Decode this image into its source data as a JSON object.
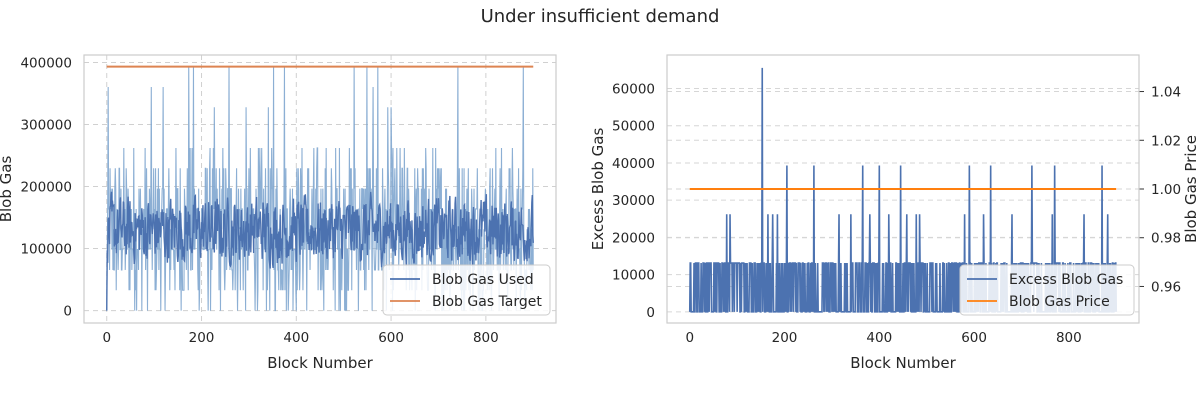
{
  "figure": {
    "title": "Under insufficient demand"
  },
  "chart_data": [
    {
      "type": "line",
      "title": "",
      "xlabel": "Block Number",
      "ylabel": "Blob Gas",
      "xlim": [
        -48,
        948
      ],
      "ylim": [
        -20000,
        412000
      ],
      "xticks": [
        0,
        200,
        400,
        600,
        800
      ],
      "yticks": [
        0,
        100000,
        200000,
        300000,
        400000
      ],
      "grid": true,
      "legend_position": "bottom-right",
      "legend": [
        "Blob Gas Used",
        "Blob Gas Target"
      ],
      "series": [
        {
          "name": "Blob Gas Used",
          "color": "#4c72b0",
          "description_levels": [
            0,
            32768,
            65536,
            98304,
            131072,
            163840,
            196608,
            229376,
            262144,
            327680,
            360448,
            393216
          ],
          "x_range": [
            0,
            900
          ],
          "typical_range": [
            0,
            262144
          ],
          "peak_blocks": [
            173,
            183,
            258,
            352,
            375,
            522,
            549,
            572,
            741,
            879
          ],
          "peak_value": 393216
        },
        {
          "name": "Blob Gas Target",
          "color": "#dd8452",
          "x": [
            0,
            900
          ],
          "values": [
            393216,
            393216
          ]
        }
      ]
    },
    {
      "type": "line",
      "title": "",
      "xlabel": "Block Number",
      "ylabel": "Excess Blob Gas",
      "ylabel_right": "Blob Gas Price",
      "xlim": [
        -48,
        948
      ],
      "ylim": [
        -3000,
        69000
      ],
      "ylim_right": [
        0.945,
        1.055
      ],
      "xticks": [
        0,
        200,
        400,
        600,
        800
      ],
      "yticks": [
        0,
        10000,
        20000,
        30000,
        40000,
        50000,
        60000
      ],
      "yticks_right": [
        0.96,
        0.98,
        1.0,
        1.02,
        1.04
      ],
      "yticks_right_labels": [
        "0.96",
        "0.98",
        "1.00",
        "1.02",
        "1.04"
      ],
      "grid": true,
      "legend_position": "bottom-right",
      "legend": [
        "Excess Blob Gas",
        "Blob Gas Price"
      ],
      "series": [
        {
          "name": "Excess Blob Gas",
          "color": "#4c72b0",
          "axis": "left",
          "spikes": [
            {
              "x": 153,
              "value": 65536
            },
            {
              "x": 205,
              "value": 39321
            },
            {
              "x": 262,
              "value": 39321
            },
            {
              "x": 365,
              "value": 39321
            },
            {
              "x": 400,
              "value": 39321
            },
            {
              "x": 445,
              "value": 39321
            },
            {
              "x": 590,
              "value": 39321
            },
            {
              "x": 635,
              "value": 39321
            },
            {
              "x": 722,
              "value": 39321
            },
            {
              "x": 770,
              "value": 39321
            },
            {
              "x": 870,
              "value": 39321
            },
            {
              "x": 78,
              "value": 26214
            },
            {
              "x": 85,
              "value": 26214
            },
            {
              "x": 165,
              "value": 26214
            },
            {
              "x": 175,
              "value": 26214
            },
            {
              "x": 185,
              "value": 26214
            },
            {
              "x": 315,
              "value": 26214
            },
            {
              "x": 340,
              "value": 26214
            },
            {
              "x": 380,
              "value": 26214
            },
            {
              "x": 420,
              "value": 26214
            },
            {
              "x": 458,
              "value": 26214
            },
            {
              "x": 478,
              "value": 26214
            },
            {
              "x": 485,
              "value": 26214
            },
            {
              "x": 580,
              "value": 26214
            },
            {
              "x": 620,
              "value": 26214
            },
            {
              "x": 680,
              "value": 26214
            },
            {
              "x": 765,
              "value": 26214
            },
            {
              "x": 832,
              "value": 26214
            },
            {
              "x": 882,
              "value": 26214
            }
          ],
          "base_level": 13107
        },
        {
          "name": "Blob Gas Price",
          "color": "#ff7f0e",
          "axis": "right",
          "x": [
            0,
            900
          ],
          "values": [
            1.0,
            1.0
          ]
        }
      ]
    }
  ]
}
